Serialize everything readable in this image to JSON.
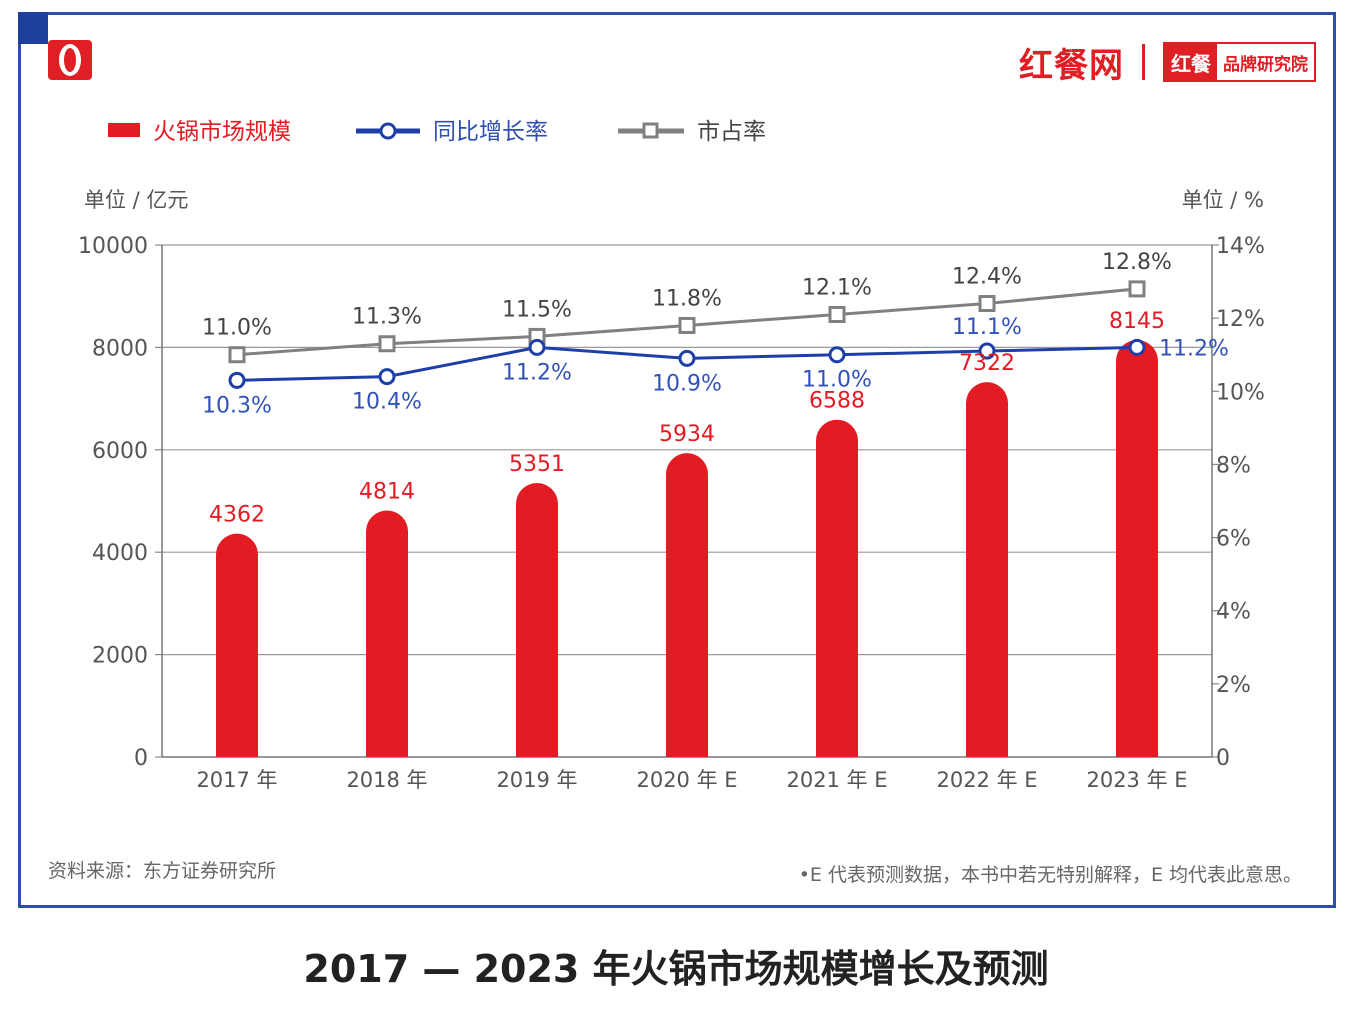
{
  "brand": {
    "name": "红餐网",
    "box_left": "红餐",
    "box_right": "品牌研究院"
  },
  "legend": {
    "bar": "火锅市场规模",
    "growth": "同比增长率",
    "share": "市占率"
  },
  "axis_units": {
    "left": "单位 / 亿元",
    "right": "单位 / %"
  },
  "source_note": "资料来源：东方证券研究所",
  "footnote": "•E 代表预测数据，本书中若无特别解释，E 均代表此意思。",
  "caption": "2017 — 2023 年火锅市场规模增长及预测",
  "colors": {
    "bar": "#e31b23",
    "growth_line": "#1f3fa8",
    "share_line": "#808080",
    "frame": "#2c4ea8"
  },
  "chart_data": {
    "type": "bar",
    "categories": [
      "2017 年",
      "2018 年",
      "2019 年",
      "2020 年 E",
      "2021 年 E",
      "2022 年 E",
      "2023 年 E"
    ],
    "series": [
      {
        "name": "火锅市场规模",
        "type": "bar",
        "axis": "left",
        "values": [
          4362,
          4814,
          5351,
          5934,
          6588,
          7322,
          8145
        ],
        "labels": [
          "4362",
          "4814",
          "5351",
          "5934",
          "6588",
          "7322",
          "8145"
        ]
      },
      {
        "name": "同比增长率",
        "type": "line",
        "axis": "right",
        "values": [
          10.3,
          10.4,
          11.2,
          10.9,
          11.0,
          11.1,
          11.2
        ],
        "labels": [
          "10.3%",
          "10.4%",
          "11.2%",
          "10.9%",
          "11.0%",
          "11.1%",
          "11.2%"
        ]
      },
      {
        "name": "市占率",
        "type": "line",
        "axis": "right",
        "values": [
          11.0,
          11.3,
          11.5,
          11.8,
          12.1,
          12.4,
          12.8
        ],
        "labels": [
          "11.0%",
          "11.3%",
          "11.5%",
          "11.8%",
          "12.1%",
          "12.4%",
          "12.8%"
        ]
      }
    ],
    "ylim": [
      0,
      10000
    ],
    "yticks": [
      "0",
      "2000",
      "4000",
      "6000",
      "8000",
      "10000"
    ],
    "y2lim": [
      0,
      14
    ],
    "y2ticks": [
      "0",
      "2%",
      "4%",
      "6%",
      "8%",
      "10%",
      "12%",
      "14%"
    ],
    "grid": true,
    "legend_position": "top-left"
  }
}
